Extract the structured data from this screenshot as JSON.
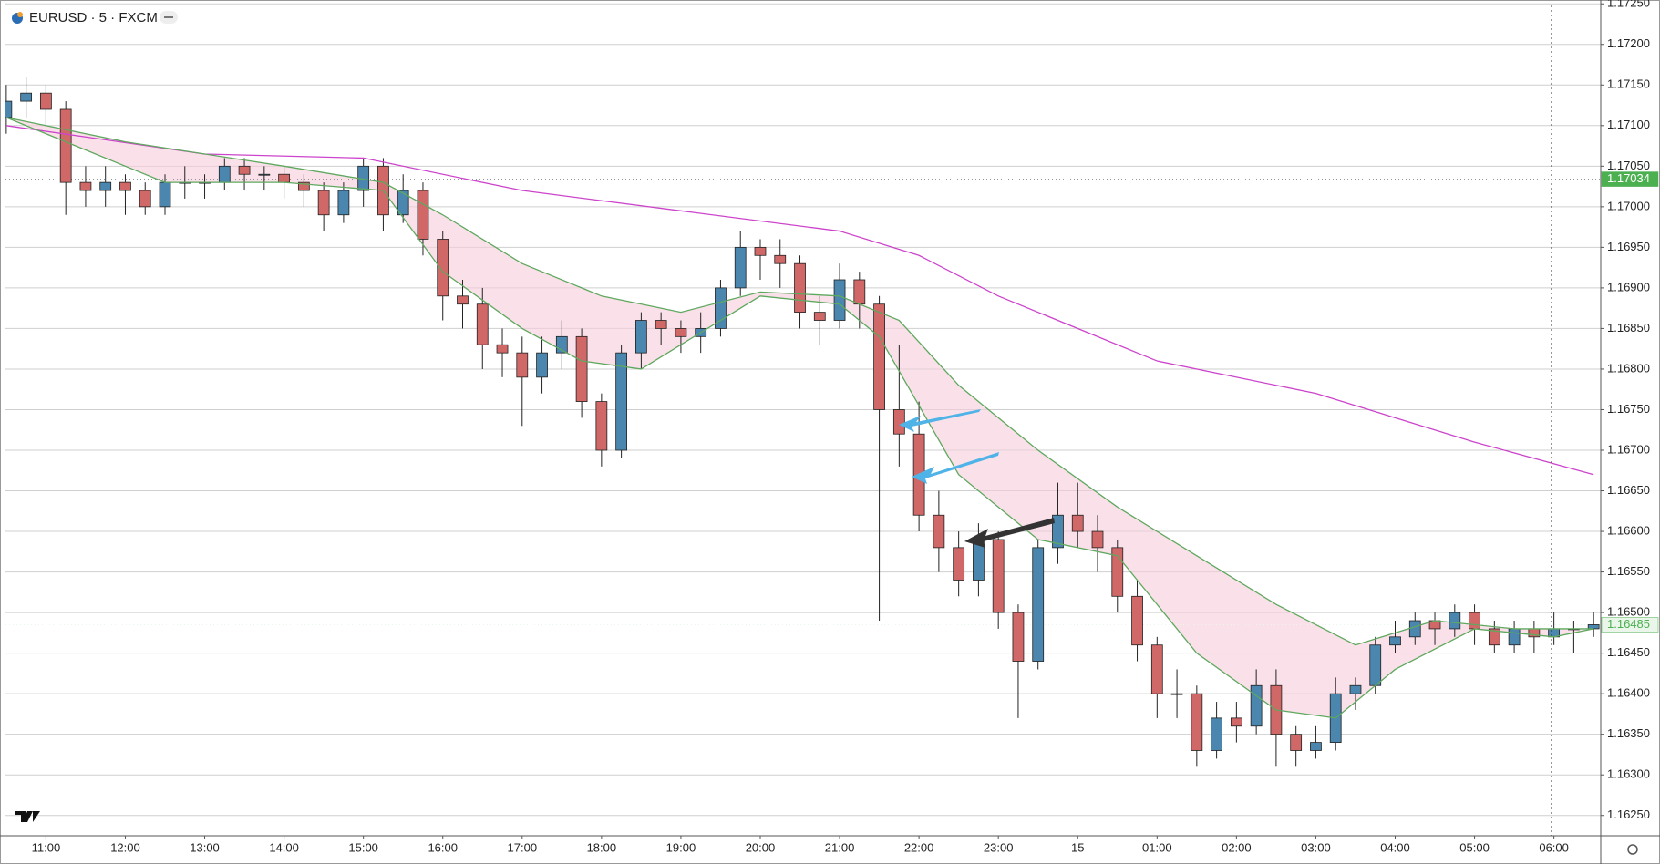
{
  "chart_data": {
    "type": "candlestick",
    "title": "EURUSD · 5 · FXCM",
    "x": [
      10.5,
      10.75,
      11,
      11.25,
      11.5,
      11.75,
      12,
      12.25,
      12.5,
      12.75,
      13,
      13.25,
      13.5,
      13.75,
      14,
      14.25,
      14.5,
      14.75,
      15,
      15.25,
      15.5,
      15.75,
      16,
      16.25,
      16.5,
      16.75,
      17,
      17.25,
      17.5,
      17.75,
      18,
      18.25,
      18.5,
      18.75,
      19,
      19.25,
      19.5,
      19.75,
      20,
      20.25,
      20.5,
      20.75,
      21,
      21.25,
      21.5,
      21.75,
      22,
      22.25,
      22.5,
      22.75,
      23,
      23.25,
      23.5,
      23.75,
      24,
      24.25,
      24.5,
      24.75,
      25,
      25.25,
      25.5,
      25.75,
      26,
      26.25,
      26.5,
      26.75,
      27,
      27.25,
      27.5,
      27.75,
      28,
      28.25,
      28.5,
      28.75,
      29,
      29.25,
      29.5,
      29.75,
      30,
      30.25,
      30.5
    ],
    "open": [
      1.1711,
      1.1713,
      1.1714,
      1.1712,
      1.1703,
      1.1702,
      1.1703,
      1.1702,
      1.17,
      1.1703,
      1.1703,
      1.1703,
      1.1705,
      1.1704,
      1.1704,
      1.1703,
      1.1702,
      1.1699,
      1.1702,
      1.1705,
      1.1699,
      1.1702,
      1.1696,
      1.1689,
      1.1688,
      1.1683,
      1.1682,
      1.1679,
      1.1682,
      1.1684,
      1.1676,
      1.167,
      1.1682,
      1.1686,
      1.1685,
      1.1684,
      1.1685,
      1.169,
      1.1695,
      1.1694,
      1.1693,
      1.1687,
      1.1686,
      1.1691,
      1.1688,
      1.1675,
      1.1672,
      1.1662,
      1.1658,
      1.1654,
      1.1659,
      1.165,
      1.1644,
      1.1658,
      1.1662,
      1.166,
      1.1658,
      1.1652,
      1.1646,
      1.164,
      1.164,
      1.1633,
      1.1637,
      1.1636,
      1.1641,
      1.1635,
      1.1633,
      1.1634,
      1.164,
      1.1641,
      1.1646,
      1.1647,
      1.1649,
      1.1648,
      1.165,
      1.1648,
      1.1646,
      1.1648,
      1.1647,
      1.1648,
      1.1648
    ],
    "high": [
      1.1715,
      1.1716,
      1.1715,
      1.1713,
      1.1705,
      1.1705,
      1.1704,
      1.1703,
      1.1704,
      1.1705,
      1.1704,
      1.1706,
      1.1706,
      1.1705,
      1.1705,
      1.1704,
      1.1703,
      1.1703,
      1.1706,
      1.1706,
      1.1704,
      1.1703,
      1.1697,
      1.1691,
      1.169,
      1.1685,
      1.1684,
      1.1684,
      1.1686,
      1.1685,
      1.1677,
      1.1683,
      1.1687,
      1.1687,
      1.1686,
      1.1687,
      1.1691,
      1.1697,
      1.1696,
      1.1696,
      1.1694,
      1.1689,
      1.1693,
      1.1692,
      1.1689,
      1.1683,
      1.1676,
      1.1665,
      1.166,
      1.1661,
      1.166,
      1.1651,
      1.1659,
      1.1666,
      1.1666,
      1.1662,
      1.1659,
      1.1654,
      1.1647,
      1.1643,
      1.1641,
      1.1639,
      1.1639,
      1.1643,
      1.1643,
      1.1636,
      1.1636,
      1.1642,
      1.1642,
      1.1647,
      1.1649,
      1.165,
      1.165,
      1.1651,
      1.1651,
      1.1649,
      1.1649,
      1.1649,
      1.165,
      1.1649,
      1.165
    ],
    "low": [
      1.1709,
      1.1711,
      1.171,
      1.1699,
      1.17,
      1.17,
      1.1699,
      1.1699,
      1.1699,
      1.1701,
      1.1701,
      1.1702,
      1.1702,
      1.1702,
      1.1701,
      1.17,
      1.1697,
      1.1698,
      1.17,
      1.1697,
      1.1698,
      1.1694,
      1.1686,
      1.1685,
      1.168,
      1.1679,
      1.1673,
      1.1677,
      1.168,
      1.1674,
      1.1668,
      1.1669,
      1.168,
      1.1683,
      1.1682,
      1.1682,
      1.1684,
      1.1689,
      1.1691,
      1.169,
      1.1685,
      1.1683,
      1.1685,
      1.1685,
      1.1649,
      1.1668,
      1.166,
      1.1655,
      1.1652,
      1.1652,
      1.1648,
      1.1637,
      1.1643,
      1.1656,
      1.1658,
      1.1655,
      1.165,
      1.1644,
      1.1637,
      1.1637,
      1.1631,
      1.1632,
      1.1634,
      1.1635,
      1.1631,
      1.1631,
      1.1632,
      1.1633,
      1.1638,
      1.164,
      1.1645,
      1.1646,
      1.1646,
      1.1647,
      1.1646,
      1.1645,
      1.1645,
      1.1645,
      1.1646,
      1.1645,
      1.1647
    ],
    "close": [
      1.1713,
      1.1714,
      1.1712,
      1.1703,
      1.1702,
      1.1703,
      1.1702,
      1.17,
      1.1703,
      1.1703,
      1.1703,
      1.1705,
      1.1704,
      1.1704,
      1.1703,
      1.1702,
      1.1699,
      1.1702,
      1.1705,
      1.1699,
      1.1702,
      1.1696,
      1.1689,
      1.1688,
      1.1683,
      1.1682,
      1.1679,
      1.1682,
      1.1684,
      1.1676,
      1.167,
      1.1682,
      1.1686,
      1.1685,
      1.1684,
      1.1685,
      1.169,
      1.1695,
      1.1694,
      1.1693,
      1.1687,
      1.1686,
      1.1691,
      1.1688,
      1.1675,
      1.1672,
      1.1662,
      1.1658,
      1.1654,
      1.1659,
      1.165,
      1.1644,
      1.1658,
      1.1662,
      1.166,
      1.1658,
      1.1652,
      1.1646,
      1.164,
      1.164,
      1.1633,
      1.1637,
      1.1636,
      1.1641,
      1.1635,
      1.1633,
      1.1634,
      1.164,
      1.1641,
      1.1646,
      1.1647,
      1.1649,
      1.1648,
      1.165,
      1.1648,
      1.1646,
      1.1648,
      1.1647,
      1.1648,
      1.1648,
      1.16485
    ],
    "up_color": "#4a86ad",
    "down_color": "#d06868",
    "wick_color": "#222222",
    "xlim": [
      10.49,
      30.59
    ],
    "ylim": [
      1.16225,
      1.17248
    ],
    "xticks": [
      {
        "value": 11,
        "label": "11:00"
      },
      {
        "value": 12,
        "label": "12:00"
      },
      {
        "value": 13,
        "label": "13:00"
      },
      {
        "value": 14,
        "label": "14:00"
      },
      {
        "value": 15,
        "label": "15:00"
      },
      {
        "value": 16,
        "label": "16:00"
      },
      {
        "value": 17,
        "label": "17:00"
      },
      {
        "value": 18,
        "label": "18:00"
      },
      {
        "value": 19,
        "label": "19:00"
      },
      {
        "value": 20,
        "label": "20:00"
      },
      {
        "value": 21,
        "label": "21:00"
      },
      {
        "value": 22,
        "label": "22:00"
      },
      {
        "value": 23,
        "label": "23:00"
      },
      {
        "value": 24,
        "label": "15"
      },
      {
        "value": 25,
        "label": "01:00"
      },
      {
        "value": 26,
        "label": "02:00"
      },
      {
        "value": 27,
        "label": "03:00"
      },
      {
        "value": 28,
        "label": "04:00"
      },
      {
        "value": 29,
        "label": "05:00"
      },
      {
        "value": 30,
        "label": "06:00"
      }
    ],
    "yticks": [
      {
        "value": 1.1625,
        "label": "1.16250"
      },
      {
        "value": 1.163,
        "label": "1.16300"
      },
      {
        "value": 1.1635,
        "label": "1.16350"
      },
      {
        "value": 1.164,
        "label": "1.16400"
      },
      {
        "value": 1.1645,
        "label": "1.16450"
      },
      {
        "value": 1.165,
        "label": "1.16500"
      },
      {
        "value": 1.1655,
        "label": "1.16550"
      },
      {
        "value": 1.166,
        "label": "1.16600"
      },
      {
        "value": 1.1665,
        "label": "1.16650"
      },
      {
        "value": 1.167,
        "label": "1.16700"
      },
      {
        "value": 1.1675,
        "label": "1.16750"
      },
      {
        "value": 1.168,
        "label": "1.16800"
      },
      {
        "value": 1.1685,
        "label": "1.16850"
      },
      {
        "value": 1.169,
        "label": "1.16900"
      },
      {
        "value": 1.1695,
        "label": "1.16950"
      },
      {
        "value": 1.17,
        "label": "1.17000"
      },
      {
        "value": 1.1705,
        "label": "1.17050"
      },
      {
        "value": 1.171,
        "label": "1.17100"
      },
      {
        "value": 1.1715,
        "label": "1.17150"
      },
      {
        "value": 1.172,
        "label": "1.17200"
      },
      {
        "value": 1.1725,
        "label": "1.17250"
      }
    ],
    "grid": true,
    "band_color": "#f6cdda",
    "lines": [
      {
        "color": "#cc44cc",
        "x": [
          10.5,
          13,
          15,
          17,
          19,
          21,
          22,
          23,
          25,
          27,
          29,
          30.5
        ],
        "values": [
          1.171,
          1.17065,
          1.1706,
          1.1702,
          1.16995,
          1.1697,
          1.1694,
          1.1689,
          1.1681,
          1.1677,
          1.1671,
          1.1667
        ]
      },
      {
        "color": "#5fa85f",
        "x": [
          10.5,
          12,
          14,
          15.25,
          16,
          17,
          18,
          19,
          20,
          21,
          21.75,
          22.5,
          23.5,
          24.5,
          25.5,
          26.5,
          27.5,
          28.5,
          29.5,
          30.5
        ],
        "values": [
          1.1711,
          1.1708,
          1.1705,
          1.1703,
          1.1699,
          1.1693,
          1.1689,
          1.1687,
          1.16895,
          1.1689,
          1.1686,
          1.1678,
          1.167,
          1.1663,
          1.1657,
          1.1651,
          1.1646,
          1.1649,
          1.1648,
          1.1648
        ]
      },
      {
        "color": "#5fa85f",
        "x": [
          10.5,
          11.5,
          12.5,
          14,
          15.25,
          16,
          17,
          17.75,
          18.5,
          19,
          20,
          21,
          21.5,
          22.5,
          23.5,
          24.5,
          25.5,
          26.5,
          27.25,
          28,
          29,
          30,
          30.5
        ],
        "values": [
          1.1711,
          1.1707,
          1.1703,
          1.1703,
          1.1702,
          1.1692,
          1.1685,
          1.1681,
          1.168,
          1.1683,
          1.1689,
          1.1688,
          1.1684,
          1.1667,
          1.1659,
          1.1657,
          1.1645,
          1.1638,
          1.1637,
          1.1643,
          1.1648,
          1.1647,
          1.1648
        ]
      }
    ],
    "price_lines": [
      {
        "value": 1.17034,
        "color": "#4caf50",
        "text_color": "#ffffff"
      },
      {
        "value": 1.16485,
        "color": "#eaf6ea",
        "text_color": "#4caf50"
      }
    ]
  }
}
